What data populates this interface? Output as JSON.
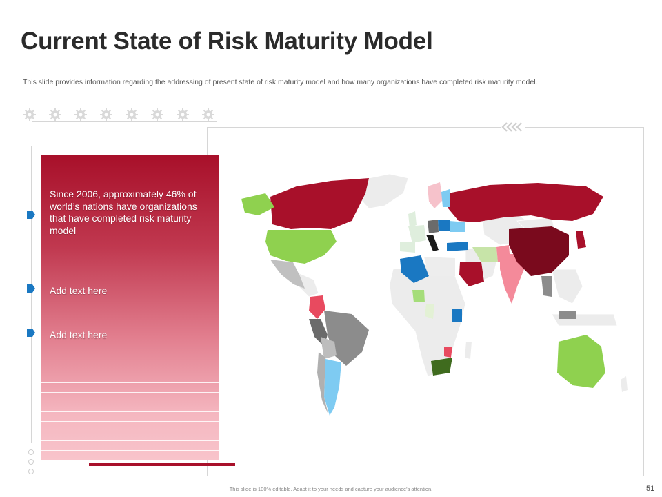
{
  "slide": {
    "title": "Current State of Risk Maturity Model",
    "subtitle": "This slide provides information regarding the addressing of present state of risk maturity model and how many organizations have completed risk maturity model.",
    "footer": "This slide is 100% editable. Adapt it to your needs and capture your audience's attention.",
    "page_number": "51"
  },
  "panel": {
    "headline": "Since 2006, approximately 46% of world’s nations have organizations that have completed risk maturity  model",
    "item_2": "Add text here",
    "item_3": "Add text here"
  },
  "colors": {
    "accent": "#a8102a",
    "marker": "#1a78c2",
    "map_base": "#ececec"
  },
  "icons": {
    "gear_row": "virus-gear-icon",
    "chevrons": "double-chevron-left-icon",
    "markers": "pentagon-arrow-marker-icon"
  }
}
